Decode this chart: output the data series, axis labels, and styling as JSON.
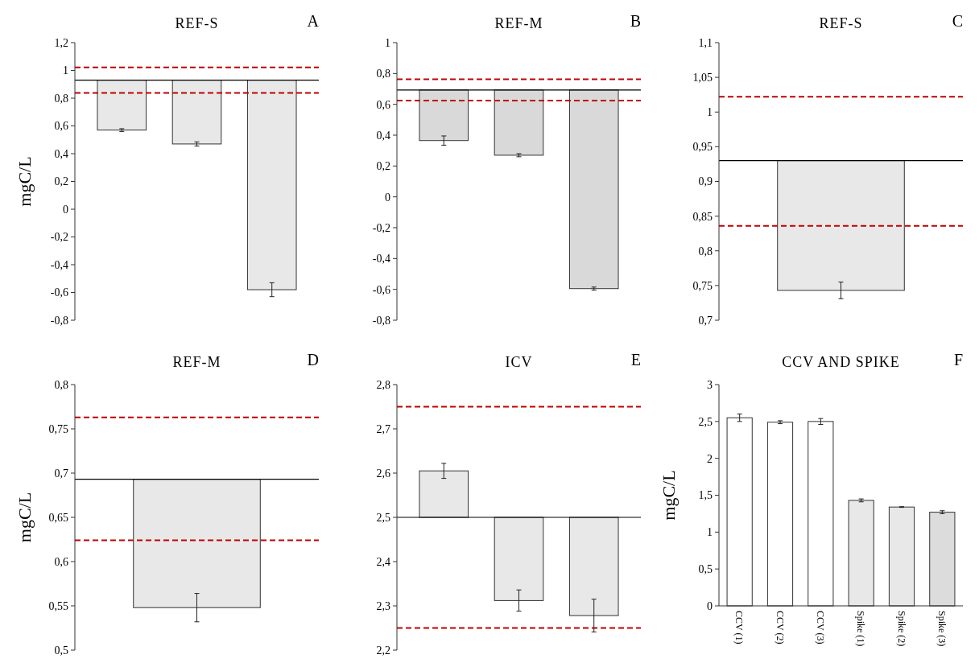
{
  "chart_data": [
    {
      "type": "bar",
      "title": "REF-S",
      "ylabel": "mgC/L",
      "annotations": [
        "A"
      ],
      "categories": [
        null,
        null,
        null
      ],
      "base": [
        0.93,
        0.93,
        0.93
      ],
      "values": [
        -0.36,
        -0.46,
        -1.51
      ],
      "errors": [
        0.01,
        0.015,
        0.05
      ],
      "colors": [
        "#e8e8e8",
        "#e8e8e8",
        "#e8e8e8"
      ],
      "ylim": [
        -0.8,
        1.2
      ],
      "yticks": [
        {
          "value": -0.8,
          "label": "-0,8"
        },
        {
          "value": -0.6,
          "label": "-0,6"
        },
        {
          "value": -0.4,
          "label": "-0,4"
        },
        {
          "value": -0.2,
          "label": "-0,2"
        },
        0,
        {
          "value": 0.2,
          "label": "0,2"
        },
        {
          "value": 0.4,
          "label": "0,4"
        },
        {
          "value": 0.6,
          "label": "0,6"
        },
        {
          "value": 0.8,
          "label": "0,8"
        },
        1,
        {
          "value": 1.2,
          "label": "1,2"
        }
      ],
      "tick_labels": "y",
      "ref_lines": [
        {
          "axis": "y",
          "value": 0.93,
          "color": "#000000",
          "line_style": "solid"
        },
        {
          "axis": "y",
          "value": 1.022,
          "color": "#c00000",
          "line_style": "dashed"
        },
        {
          "axis": "y",
          "value": 0.837,
          "color": "#c00000",
          "line_style": "dashed"
        }
      ]
    },
    {
      "type": "bar",
      "title": "REF-M",
      "annotations": [
        "B"
      ],
      "categories": [
        null,
        null,
        null
      ],
      "base": [
        0.693,
        0.693,
        0.693
      ],
      "values": [
        -0.328,
        -0.423,
        -1.288
      ],
      "errors": [
        0.03,
        0.01,
        0.01
      ],
      "colors": [
        "#d9d9d9",
        "#d9d9d9",
        "#d9d9d9"
      ],
      "ylim": [
        -0.8,
        1
      ],
      "yticks": [
        {
          "value": -0.8,
          "label": "-0,8"
        },
        {
          "value": -0.6,
          "label": "-0,6"
        },
        {
          "value": -0.4,
          "label": "-0,4"
        },
        {
          "value": -0.2,
          "label": "-0,2"
        },
        0,
        {
          "value": 0.2,
          "label": "0,2"
        },
        {
          "value": 0.4,
          "label": "0,4"
        },
        {
          "value": 0.6,
          "label": "0,6"
        },
        {
          "value": 0.8,
          "label": "0,8"
        },
        1
      ],
      "tick_labels": "y",
      "ref_lines": [
        {
          "axis": "y",
          "value": 0.693,
          "color": "#000000",
          "line_style": "solid"
        },
        {
          "axis": "y",
          "value": 0.763,
          "color": "#c00000",
          "line_style": "dashed"
        },
        {
          "axis": "y",
          "value": 0.624,
          "color": "#c00000",
          "line_style": "dashed"
        }
      ]
    },
    {
      "type": "bar",
      "title": "REF-S",
      "annotations": [
        "C"
      ],
      "categories": [
        null
      ],
      "base": [
        0.93
      ],
      "values": [
        -0.187
      ],
      "errors": [
        0.012
      ],
      "colors": [
        "#e8e8e8"
      ],
      "ylim": [
        0.7,
        1.1
      ],
      "yticks": [
        {
          "value": 0.7,
          "label": "0,7"
        },
        {
          "value": 0.75,
          "label": "0,75"
        },
        {
          "value": 0.8,
          "label": "0,8"
        },
        {
          "value": 0.85,
          "label": "0,85"
        },
        {
          "value": 0.9,
          "label": "0,9"
        },
        {
          "value": 0.95,
          "label": "0,95"
        },
        1,
        {
          "value": 1.05,
          "label": "1,05"
        },
        {
          "value": 1.1,
          "label": "1,1"
        }
      ],
      "tick_labels": "y",
      "ref_lines": [
        {
          "axis": "y",
          "value": 0.93,
          "color": "#000000",
          "line_style": "solid"
        },
        {
          "axis": "y",
          "value": 1.022,
          "color": "#c00000",
          "line_style": "dashed"
        },
        {
          "axis": "y",
          "value": 0.836,
          "color": "#c00000",
          "line_style": "dashed"
        }
      ]
    },
    {
      "type": "bar",
      "title": "REF-M",
      "ylabel": "mgC/L",
      "annotations": [
        "D"
      ],
      "categories": [
        null
      ],
      "base": [
        0.693
      ],
      "values": [
        -0.145
      ],
      "errors": [
        0.016
      ],
      "colors": [
        "#e8e8e8"
      ],
      "ylim": [
        0.5,
        0.8
      ],
      "yticks": [
        {
          "value": 0.5,
          "label": "0,5"
        },
        {
          "value": 0.55,
          "label": "0,55"
        },
        {
          "value": 0.6,
          "label": "0,6"
        },
        {
          "value": 0.65,
          "label": "0,65"
        },
        {
          "value": 0.7,
          "label": "0,7"
        },
        {
          "value": 0.75,
          "label": "0,75"
        },
        {
          "value": 0.8,
          "label": "0,8"
        }
      ],
      "tick_labels": "y",
      "ref_lines": [
        {
          "axis": "y",
          "value": 0.693,
          "color": "#000000",
          "line_style": "solid"
        },
        {
          "axis": "y",
          "value": 0.763,
          "color": "#c00000",
          "line_style": "dashed"
        },
        {
          "axis": "y",
          "value": 0.624,
          "color": "#c00000",
          "line_style": "dashed"
        }
      ]
    },
    {
      "type": "bar",
      "title": "ICV",
      "annotations": [
        "E"
      ],
      "categories": [
        null,
        null,
        null
      ],
      "base": [
        2.5,
        2.5,
        2.5
      ],
      "values": [
        0.105,
        -0.188,
        -0.222
      ],
      "errors": [
        0.017,
        0.024,
        0.037
      ],
      "colors": [
        "#e8e8e8",
        "#e8e8e8",
        "#e8e8e8"
      ],
      "ylim": [
        2.2,
        2.8
      ],
      "yticks": [
        {
          "value": 2.2,
          "label": "2,2"
        },
        {
          "value": 2.3,
          "label": "2,3"
        },
        {
          "value": 2.4,
          "label": "2,4"
        },
        {
          "value": 2.5,
          "label": "2,5"
        },
        {
          "value": 2.6,
          "label": "2,6"
        },
        {
          "value": 2.7,
          "label": "2,7"
        },
        {
          "value": 2.8,
          "label": "2,8"
        }
      ],
      "tick_labels": "y",
      "ref_lines": [
        {
          "axis": "y",
          "value": 2.5,
          "color": "#000000",
          "line_style": "solid"
        },
        {
          "axis": "y",
          "value": 2.75,
          "color": "#c00000",
          "line_style": "dashed"
        },
        {
          "axis": "y",
          "value": 2.25,
          "color": "#c00000",
          "line_style": "dashed"
        }
      ]
    },
    {
      "type": "bar",
      "title": "CCV AND SPIKE",
      "ylabel": "mgC/L",
      "annotations": [
        "F"
      ],
      "categories": [
        "CCV (1)",
        "CCV (2)",
        "CCV (3)",
        "Spike (1)",
        "Spike (2)",
        "Spike (3)"
      ],
      "values": [
        2.55,
        2.49,
        2.5,
        1.43,
        1.34,
        1.27
      ],
      "errors": [
        0.05,
        0.02,
        0.04,
        0.02,
        0.005,
        0.02
      ],
      "colors": [
        "#ffffff",
        "#ffffff",
        "#ffffff",
        "#e8e8e8",
        "#e8e8e8",
        "#dcdcdc"
      ],
      "ylim": [
        0,
        3
      ],
      "yticks": [
        0,
        {
          "value": 0.5,
          "label": "0,5"
        },
        1,
        {
          "value": 1.5,
          "label": "1,5"
        },
        2,
        {
          "value": 2.5,
          "label": "2,5"
        },
        3
      ]
    }
  ]
}
